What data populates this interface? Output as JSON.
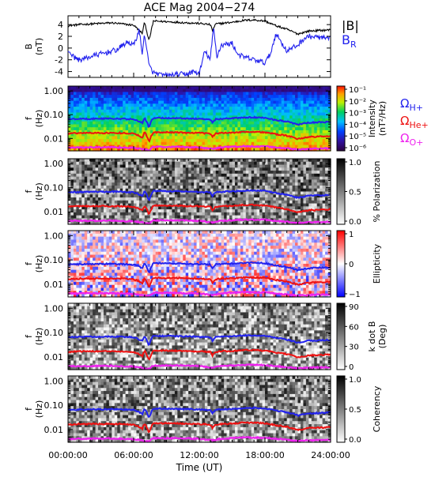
{
  "chart_data": {
    "type": "spectrogram",
    "title": "ACE Mag 2004−274",
    "time_axis": {
      "label": "Time (UT)",
      "range_hours": [
        0,
        24
      ],
      "tick_labels": [
        "00:00:00",
        "06:00:00",
        "12:00:00",
        "18:00:00",
        "24:00:00"
      ]
    },
    "colors": {
      "black": "#000000",
      "blue": "#2222ee",
      "red": "#ee1111",
      "magenta": "#ee22ee"
    },
    "panels": [
      {
        "id": "field",
        "type": "line",
        "ylabel": "B",
        "yunit": "(nT)",
        "ylim": [
          -5,
          5.5
        ],
        "yticks": [
          4,
          2,
          0,
          -2,
          -4
        ],
        "legend": [
          {
            "label": "|B|",
            "color": "#000000"
          },
          {
            "label": "B",
            "sub": "R",
            "color": "#2222ee"
          }
        ],
        "series": [
          {
            "name": "|B|",
            "color": "#000000",
            "points": [
              [
                0,
                3.8
              ],
              [
                1,
                4.0
              ],
              [
                2,
                4.1
              ],
              [
                3,
                4.2
              ],
              [
                4,
                4.3
              ],
              [
                5,
                4.1
              ],
              [
                6,
                3.9
              ],
              [
                6.8,
                2.5
              ],
              [
                7.0,
                4.5
              ],
              [
                7.4,
                1.2
              ],
              [
                7.8,
                4.6
              ],
              [
                9,
                4.5
              ],
              [
                10,
                4.4
              ],
              [
                11,
                4.3
              ],
              [
                12,
                4.2
              ],
              [
                13,
                4.0
              ],
              [
                13.2,
                3.0
              ],
              [
                13.5,
                4.1
              ],
              [
                14,
                4.2
              ],
              [
                15,
                4.4
              ],
              [
                16,
                4.7
              ],
              [
                17,
                4.8
              ],
              [
                18,
                4.6
              ],
              [
                19,
                3.8
              ],
              [
                20,
                3.2
              ],
              [
                21,
                2.4
              ],
              [
                22,
                2.9
              ],
              [
                23,
                3.0
              ],
              [
                24,
                3.1
              ]
            ]
          },
          {
            "name": "BR",
            "color": "#2222ee",
            "points": [
              [
                0,
                -0.3
              ],
              [
                0.5,
                -1.5
              ],
              [
                1,
                -2.0
              ],
              [
                1.5,
                -1.8
              ],
              [
                2,
                -1.5
              ],
              [
                2.5,
                -1.2
              ],
              [
                3,
                -1.0
              ],
              [
                3.5,
                -0.8
              ],
              [
                4,
                -0.5
              ],
              [
                4.5,
                -0.3
              ],
              [
                5,
                0.5
              ],
              [
                5.5,
                1.0
              ],
              [
                6,
                0.5
              ],
              [
                6.5,
                3.0
              ],
              [
                6.8,
                -1.0
              ],
              [
                7.0,
                2.5
              ],
              [
                7.4,
                -3.0
              ],
              [
                7.8,
                -4.2
              ],
              [
                8.5,
                -4.6
              ],
              [
                9,
                -4.7
              ],
              [
                10,
                -4.5
              ],
              [
                11,
                -4.4
              ],
              [
                11.5,
                -4.0
              ],
              [
                12,
                -4.4
              ],
              [
                12.5,
                -0.5
              ],
              [
                13.0,
                -2.0
              ],
              [
                13.3,
                3.5
              ],
              [
                13.6,
                -1.5
              ],
              [
                14,
                0.5
              ],
              [
                15,
                0.8
              ],
              [
                15.5,
                -1.0
              ],
              [
                16,
                -1.5
              ],
              [
                17,
                -2.0
              ],
              [
                18,
                -2.5
              ],
              [
                18.5,
                -1.0
              ],
              [
                19,
                2.5
              ],
              [
                19.5,
                1.0
              ],
              [
                20,
                -0.5
              ],
              [
                21,
                0.5
              ],
              [
                21.5,
                1.5
              ],
              [
                22,
                2.0
              ],
              [
                23,
                1.8
              ],
              [
                24,
                1.5
              ]
            ]
          }
        ]
      },
      {
        "id": "intensity",
        "type": "spectrogram",
        "ylabel": "f",
        "yunit": "(Hz)",
        "yticks": [
          "1.00",
          "0.10",
          "0.01"
        ],
        "colorbar": {
          "title": "Intensity",
          "unit": "(nT²/Hz)",
          "ticks": [
            "10⁻¹",
            "10⁻²",
            "10⁻³",
            "10⁻⁴",
            "10⁻⁵",
            "10⁻⁶"
          ],
          "scale": "rainbow"
        },
        "legend": [
          {
            "label": "Ω",
            "sub": "H+",
            "color": "#2222ee"
          },
          {
            "label": "Ω",
            "sub": "He+",
            "color": "#ee1111"
          },
          {
            "label": "Ω",
            "sub": "O+",
            "color": "#ee22ee"
          }
        ]
      },
      {
        "id": "polarization",
        "type": "spectrogram",
        "ylabel": "f",
        "yunit": "(Hz)",
        "yticks": [
          "1.00",
          "0.10",
          "0.01"
        ],
        "colorbar": {
          "title": "% Polarization",
          "unit": "",
          "ticks": [
            "1.0",
            "0.5",
            "0.0"
          ],
          "scale": "gray"
        }
      },
      {
        "id": "ellipticity",
        "type": "spectrogram",
        "ylabel": "f",
        "yunit": "(Hz)",
        "yticks": [
          "1.00",
          "0.10",
          "0.01"
        ],
        "colorbar": {
          "title": "Ellipticity",
          "unit": "",
          "ticks": [
            "1",
            "0",
            "−1"
          ],
          "scale": "redblue"
        }
      },
      {
        "id": "kdotb",
        "type": "spectrogram",
        "ylabel": "f",
        "yunit": "(Hz)",
        "yticks": [
          "1.00",
          "0.10",
          "0.01"
        ],
        "colorbar": {
          "title": "k dot B",
          "unit": "(Deg)",
          "ticks": [
            "90",
            "60",
            "30",
            "0"
          ],
          "scale": "gray"
        }
      },
      {
        "id": "coherency",
        "type": "spectrogram",
        "ylabel": "f",
        "yunit": "(Hz)",
        "yticks": [
          "1.00",
          "0.10",
          "0.01"
        ],
        "colorbar": {
          "title": "Coherency",
          "unit": "",
          "ticks": [
            "1.0",
            "0.5",
            "0.0"
          ],
          "scale": "gray"
        }
      }
    ],
    "gyrofrequency_lines": {
      "freq_range_hz": [
        0.003,
        1.6
      ],
      "OmegaH+": {
        "color": "#2222ee",
        "points": [
          [
            0,
            0.065
          ],
          [
            1,
            0.066
          ],
          [
            2,
            0.067
          ],
          [
            3,
            0.068
          ],
          [
            4,
            0.069
          ],
          [
            5,
            0.067
          ],
          [
            6,
            0.064
          ],
          [
            6.8,
            0.045
          ],
          [
            7.0,
            0.071
          ],
          [
            7.4,
            0.028
          ],
          [
            7.8,
            0.073
          ],
          [
            9,
            0.072
          ],
          [
            10,
            0.071
          ],
          [
            11,
            0.069
          ],
          [
            12,
            0.067
          ],
          [
            13,
            0.064
          ],
          [
            13.2,
            0.046
          ],
          [
            13.5,
            0.065
          ],
          [
            14,
            0.067
          ],
          [
            15,
            0.07
          ],
          [
            16,
            0.075
          ],
          [
            17,
            0.077
          ],
          [
            18,
            0.073
          ],
          [
            19,
            0.06
          ],
          [
            20,
            0.051
          ],
          [
            21,
            0.038
          ],
          [
            22,
            0.046
          ],
          [
            23,
            0.048
          ],
          [
            24,
            0.05
          ]
        ]
      },
      "OmegaHe+": {
        "color": "#ee1111",
        "points": [
          [
            0,
            0.016
          ],
          [
            1,
            0.017
          ],
          [
            2,
            0.017
          ],
          [
            3,
            0.017
          ],
          [
            4,
            0.017
          ],
          [
            5,
            0.017
          ],
          [
            6,
            0.016
          ],
          [
            6.8,
            0.011
          ],
          [
            7.0,
            0.018
          ],
          [
            7.4,
            0.007
          ],
          [
            7.8,
            0.018
          ],
          [
            9,
            0.018
          ],
          [
            10,
            0.018
          ],
          [
            11,
            0.017
          ],
          [
            12,
            0.017
          ],
          [
            13,
            0.016
          ],
          [
            13.2,
            0.0115
          ],
          [
            13.5,
            0.016
          ],
          [
            14,
            0.017
          ],
          [
            15,
            0.0175
          ],
          [
            16,
            0.019
          ],
          [
            17,
            0.019
          ],
          [
            18,
            0.018
          ],
          [
            19,
            0.015
          ],
          [
            20,
            0.013
          ],
          [
            21,
            0.0095
          ],
          [
            22,
            0.0115
          ],
          [
            23,
            0.012
          ],
          [
            24,
            0.0125
          ]
        ]
      },
      "OmegaO+": {
        "color": "#ee22ee",
        "points": [
          [
            0,
            0.0041
          ],
          [
            2,
            0.0042
          ],
          [
            4,
            0.0043
          ],
          [
            6,
            0.004
          ],
          [
            6.8,
            0.0036
          ],
          [
            7.4,
            0.0032
          ],
          [
            7.8,
            0.0044
          ],
          [
            10,
            0.0044
          ],
          [
            12,
            0.0042
          ],
          [
            13.2,
            0.0036
          ],
          [
            14,
            0.0042
          ],
          [
            16,
            0.0047
          ],
          [
            18,
            0.0046
          ],
          [
            20,
            0.0038
          ],
          [
            21,
            0.0034
          ],
          [
            22,
            0.0036
          ],
          [
            24,
            0.0038
          ]
        ]
      }
    }
  }
}
